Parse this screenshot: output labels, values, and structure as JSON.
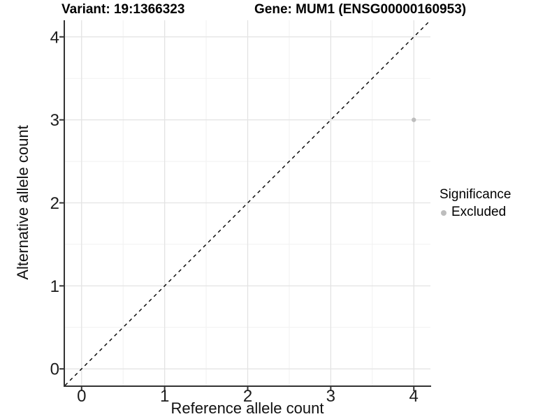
{
  "titles": {
    "variant": "Variant: 19:1366323",
    "gene": "Gene: MUM1 (ENSG00000160953)"
  },
  "chart_data": {
    "type": "scatter",
    "xlabel": "Reference allele count",
    "ylabel": "Alternative allele count",
    "x_ticks": [
      0,
      1,
      2,
      3,
      4
    ],
    "y_ticks": [
      0,
      1,
      2,
      3,
      4
    ],
    "x_minor_ticks": [
      0.5,
      1.5,
      2.5,
      3.5
    ],
    "y_minor_ticks": [
      0.5,
      1.5,
      2.5,
      3.5
    ],
    "xlim": [
      -0.2,
      4.2
    ],
    "ylim": [
      -0.2,
      4.2
    ],
    "grid": true,
    "points": [
      {
        "x": 4,
        "y": 3,
        "significance": "Excluded",
        "color": "#bdbdbd"
      }
    ],
    "identity_line": {
      "slope": 1,
      "intercept": 0,
      "style": "dashed",
      "color": "#000000"
    },
    "legend": {
      "position": "right",
      "title": "Significance",
      "items": [
        {
          "label": "Excluded",
          "color": "#bdbdbd"
        }
      ]
    },
    "colors": {
      "grid_major": "#e3e3e3",
      "grid_minor": "#f1f1f1",
      "axis": "#333333",
      "tick_label": "#1c1c1c",
      "background": "#ffffff"
    }
  }
}
